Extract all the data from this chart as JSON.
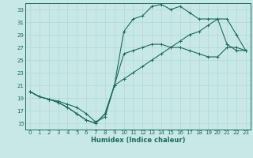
{
  "xlabel": "Humidex (Indice chaleur)",
  "background_color": "#c8e8e8",
  "grid_color": "#b0d8d8",
  "line_color": "#1a6b5a",
  "xlim": [
    -0.5,
    23.5
  ],
  "ylim": [
    14.0,
    34.0
  ],
  "xticks": [
    0,
    1,
    2,
    3,
    4,
    5,
    6,
    7,
    8,
    9,
    10,
    11,
    12,
    13,
    14,
    15,
    16,
    17,
    18,
    19,
    20,
    21,
    22,
    23
  ],
  "yticks": [
    15,
    17,
    19,
    21,
    23,
    25,
    27,
    29,
    31,
    33
  ],
  "curve_min_x": [
    0,
    1,
    2,
    3,
    4,
    5,
    6,
    7,
    8,
    9,
    10,
    11,
    12,
    13,
    14,
    15,
    16,
    17,
    18,
    19,
    20,
    21,
    22,
    23
  ],
  "curve_min_y": [
    20.0,
    19.2,
    18.8,
    18.3,
    17.5,
    16.5,
    15.5,
    15.0,
    16.5,
    21.0,
    26.0,
    26.5,
    27.0,
    27.5,
    27.5,
    27.0,
    27.0,
    26.5,
    26.0,
    25.5,
    25.5,
    27.0,
    27.0,
    26.5
  ],
  "curve_max_x": [
    0,
    1,
    2,
    3,
    4,
    5,
    6,
    7,
    8,
    9,
    10,
    11,
    12,
    13,
    14,
    15,
    16,
    17,
    18,
    19,
    20,
    21,
    22,
    23
  ],
  "curve_max_y": [
    20.0,
    19.2,
    18.8,
    18.3,
    17.5,
    16.5,
    15.5,
    15.0,
    16.5,
    21.0,
    29.5,
    31.5,
    32.0,
    33.5,
    33.8,
    33.0,
    33.5,
    32.5,
    31.5,
    31.5,
    31.5,
    27.5,
    26.5,
    26.5
  ],
  "curve_diag_x": [
    0,
    1,
    2,
    3,
    4,
    5,
    6,
    7,
    8,
    9,
    10,
    11,
    12,
    13,
    14,
    15,
    16,
    17,
    18,
    19,
    20,
    21,
    22,
    23
  ],
  "curve_diag_y": [
    20.0,
    19.2,
    18.8,
    18.5,
    18.0,
    17.5,
    16.5,
    15.2,
    16.0,
    21.0,
    22.0,
    23.0,
    24.0,
    25.0,
    26.0,
    27.0,
    28.0,
    29.0,
    29.5,
    30.5,
    31.5,
    31.5,
    29.0,
    26.5
  ]
}
